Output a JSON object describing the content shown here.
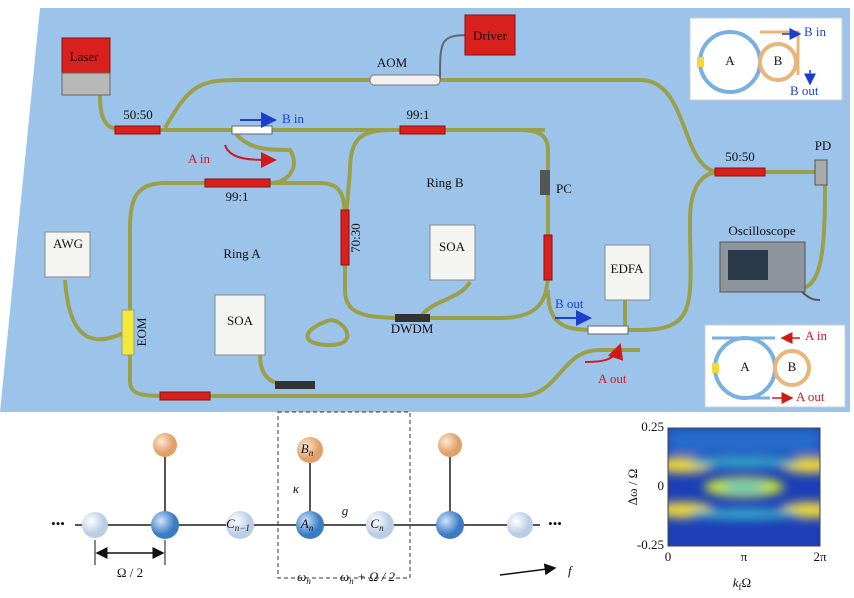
{
  "setup": {
    "laser": "Laser",
    "aom": "AOM",
    "driver": "Driver",
    "coupler_top": "50:50",
    "coupler_b": "99:1",
    "b_in": "B in",
    "a_in": "A in",
    "coupler_a": "99:1",
    "ring_a": "Ring A",
    "ring_b": "Ring B",
    "pc": "PC",
    "awg": "AWG",
    "eom": "EOM",
    "soa_a": "SOA",
    "coupler_70": "70:30",
    "soa_b": "SOA",
    "dwdm": "DWDM",
    "edfa": "EDFA",
    "b_out": "B out",
    "a_out": "A out",
    "coupler_pd": "50:50",
    "pd": "PD",
    "oscilloscope": "Oscilloscope"
  },
  "inset_top": {
    "a": "A",
    "b": "B",
    "b_in": "B in",
    "b_out": "B out"
  },
  "inset_bottom": {
    "a": "A",
    "b": "B",
    "a_in": "A in",
    "a_out": "A out"
  },
  "lattice": {
    "ellipsis": "•••",
    "b_n": {
      "base": "B",
      "sub": "n"
    },
    "kappa": "κ",
    "g": "g",
    "c_prev": {
      "base": "C",
      "sub": "n−1"
    },
    "a_n": {
      "base": "A",
      "sub": "n"
    },
    "c_n": {
      "base": "C",
      "sub": "n"
    },
    "omega_n": {
      "base": "ω",
      "sub": "n"
    },
    "omega_shift": {
      "base": "ω",
      "sub": "n",
      "rest": " + Ω / 2"
    },
    "spacing": "Ω / 2",
    "axis": "f"
  },
  "spectrum": {
    "y_label": "Δω / Ω",
    "x_label": {
      "base": "k",
      "sub": "f",
      "rest": "Ω"
    },
    "ylim": [
      -0.25,
      0.25
    ],
    "yticks": [
      0.25,
      0,
      -0.25
    ],
    "xlim": [
      0,
      6.2832
    ],
    "xticks": [
      0,
      {
        "value": 3.1416,
        "label": "π"
      },
      {
        "value": 6.2832,
        "label": "2π"
      }
    ]
  }
}
